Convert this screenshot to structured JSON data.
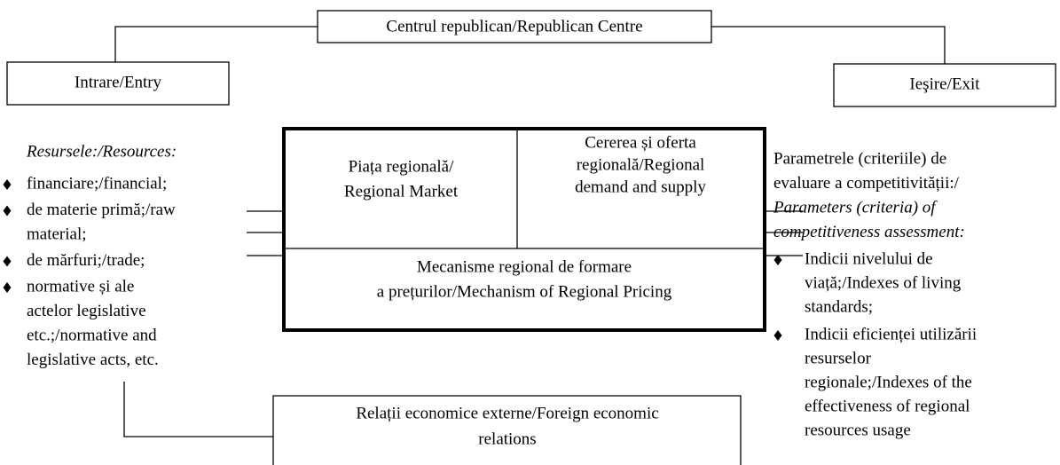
{
  "top_box": {
    "label": "Centrul republican/Republican Centre"
  },
  "entry_box": {
    "label": "Intrare/Entry"
  },
  "exit_box": {
    "label": "Ieşire/Exit"
  },
  "center": {
    "market": [
      "Piața regională/",
      "Regional Market"
    ],
    "demand_supply": [
      "Cererea și oferta",
      "regională/Regional",
      "demand and supply"
    ],
    "pricing": [
      "Mecanisme regional de formare",
      "a prețurilor/Mechanism of Regional Pricing"
    ]
  },
  "resources": {
    "heading": "Resursele:/Resources:",
    "items": [
      [
        "financiare;/financial;"
      ],
      [
        "de  materie primă;/raw",
        "material;"
      ],
      [
        "de mărfuri;/trade;"
      ],
      [
        "normative și ale",
        "actelor legislative",
        "etc.;/normative and",
        "legislative acts, etc."
      ]
    ]
  },
  "parameters": {
    "heading": [
      "Parametrele (criteriile) de",
      "evaluare a competitivității:/"
    ],
    "heading_italic": [
      "Parameters (criteria) of",
      "competitiveness assessment:"
    ],
    "items": [
      [
        "Indicii nivelului de",
        "viață;/Indexes of living",
        "standards;"
      ],
      [
        "Indicii eficienței utilizării",
        "resurselor",
        "regionale;/Indexes of the",
        "effectiveness of regional",
        "resources usage"
      ]
    ]
  },
  "foreign_box": {
    "label": [
      "Relații economice externe/Foreign economic",
      "relations"
    ]
  }
}
